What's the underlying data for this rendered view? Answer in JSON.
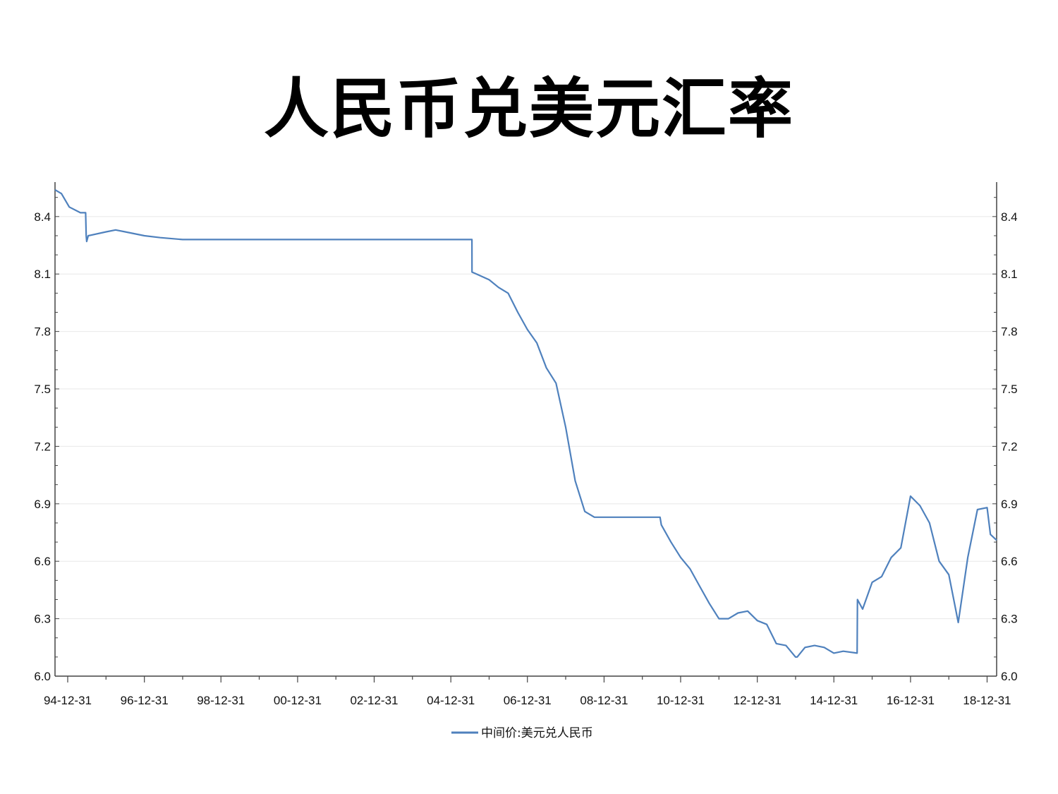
{
  "title": "人民币兑美元汇率",
  "chart_data": {
    "type": "line",
    "title": "人民币兑美元汇率",
    "xlabel": "",
    "ylabel": "",
    "x_tick_labels": [
      "94-12-31",
      "96-12-31",
      "98-12-31",
      "00-12-31",
      "02-12-31",
      "04-12-31",
      "06-12-31",
      "08-12-31",
      "10-12-31",
      "12-12-31",
      "14-12-31",
      "16-12-31",
      "18-12-31"
    ],
    "y_tick_labels": [
      "6.0",
      "6.3",
      "6.6",
      "6.9",
      "7.2",
      "7.5",
      "7.8",
      "8.1",
      "8.4"
    ],
    "y_ticks": [
      6.0,
      6.3,
      6.6,
      6.9,
      7.2,
      7.5,
      7.8,
      8.1,
      8.4
    ],
    "xlim": [
      "1994-09-01",
      "2019-04-01"
    ],
    "ylim": [
      6.0,
      8.58
    ],
    "grid": true,
    "legend_position": "bottom-center",
    "colors": {
      "line": "#4f81bd",
      "axis": "#444444",
      "grid": "#e8e8e8"
    },
    "series": [
      {
        "name": "中间价:美元兑人民币",
        "points": [
          [
            "1994-09-01",
            8.54
          ],
          [
            "1994-11-01",
            8.52
          ],
          [
            "1995-01-15",
            8.45
          ],
          [
            "1995-05-01",
            8.42
          ],
          [
            "1995-06-20",
            8.42
          ],
          [
            "1995-06-25",
            8.3
          ],
          [
            "1995-06-30",
            8.27
          ],
          [
            "1995-07-15",
            8.3
          ],
          [
            "1996-01-01",
            8.32
          ],
          [
            "1996-04-01",
            8.33
          ],
          [
            "1996-07-01",
            8.32
          ],
          [
            "1996-12-31",
            8.3
          ],
          [
            "1997-06-01",
            8.29
          ],
          [
            "1997-12-31",
            8.28
          ],
          [
            "1998-06-30",
            8.28
          ],
          [
            "1999-06-30",
            8.28
          ],
          [
            "2000-06-30",
            8.28
          ],
          [
            "2001-06-30",
            8.28
          ],
          [
            "2002-06-30",
            8.28
          ],
          [
            "2003-06-30",
            8.28
          ],
          [
            "2004-06-30",
            8.28
          ],
          [
            "2005-07-20",
            8.28
          ],
          [
            "2005-07-21",
            8.11
          ],
          [
            "2005-09-01",
            8.1
          ],
          [
            "2005-12-31",
            8.07
          ],
          [
            "2006-03-31",
            8.03
          ],
          [
            "2006-06-30",
            8.0
          ],
          [
            "2006-09-30",
            7.9
          ],
          [
            "2006-12-31",
            7.81
          ],
          [
            "2007-03-31",
            7.74
          ],
          [
            "2007-06-30",
            7.61
          ],
          [
            "2007-09-30",
            7.53
          ],
          [
            "2007-12-31",
            7.3
          ],
          [
            "2008-03-31",
            7.02
          ],
          [
            "2008-06-30",
            6.86
          ],
          [
            "2008-09-30",
            6.83
          ],
          [
            "2009-03-31",
            6.83
          ],
          [
            "2009-09-30",
            6.83
          ],
          [
            "2010-06-18",
            6.83
          ],
          [
            "2010-06-30",
            6.79
          ],
          [
            "2010-09-30",
            6.7
          ],
          [
            "2010-12-31",
            6.62
          ],
          [
            "2011-03-31",
            6.56
          ],
          [
            "2011-06-30",
            6.47
          ],
          [
            "2011-09-30",
            6.38
          ],
          [
            "2011-12-31",
            6.3
          ],
          [
            "2012-03-31",
            6.3
          ],
          [
            "2012-06-30",
            6.33
          ],
          [
            "2012-09-30",
            6.34
          ],
          [
            "2012-12-31",
            6.29
          ],
          [
            "2013-03-31",
            6.27
          ],
          [
            "2013-06-30",
            6.17
          ],
          [
            "2013-09-30",
            6.16
          ],
          [
            "2013-12-31",
            6.1
          ],
          [
            "2014-01-15",
            6.1
          ],
          [
            "2014-03-31",
            6.15
          ],
          [
            "2014-06-30",
            6.16
          ],
          [
            "2014-09-30",
            6.15
          ],
          [
            "2014-12-31",
            6.12
          ],
          [
            "2015-03-31",
            6.13
          ],
          [
            "2015-08-10",
            6.12
          ],
          [
            "2015-08-11",
            6.23
          ],
          [
            "2015-08-13",
            6.4
          ],
          [
            "2015-10-01",
            6.35
          ],
          [
            "2015-12-31",
            6.49
          ],
          [
            "2016-03-31",
            6.52
          ],
          [
            "2016-06-30",
            6.62
          ],
          [
            "2016-09-30",
            6.67
          ],
          [
            "2016-12-31",
            6.94
          ],
          [
            "2017-03-31",
            6.89
          ],
          [
            "2017-06-30",
            6.8
          ],
          [
            "2017-09-30",
            6.6
          ],
          [
            "2017-12-31",
            6.53
          ],
          [
            "2018-03-31",
            6.28
          ],
          [
            "2018-06-30",
            6.62
          ],
          [
            "2018-09-30",
            6.87
          ],
          [
            "2018-12-31",
            6.88
          ],
          [
            "2019-02-01",
            6.74
          ],
          [
            "2019-04-01",
            6.71
          ]
        ]
      }
    ]
  }
}
